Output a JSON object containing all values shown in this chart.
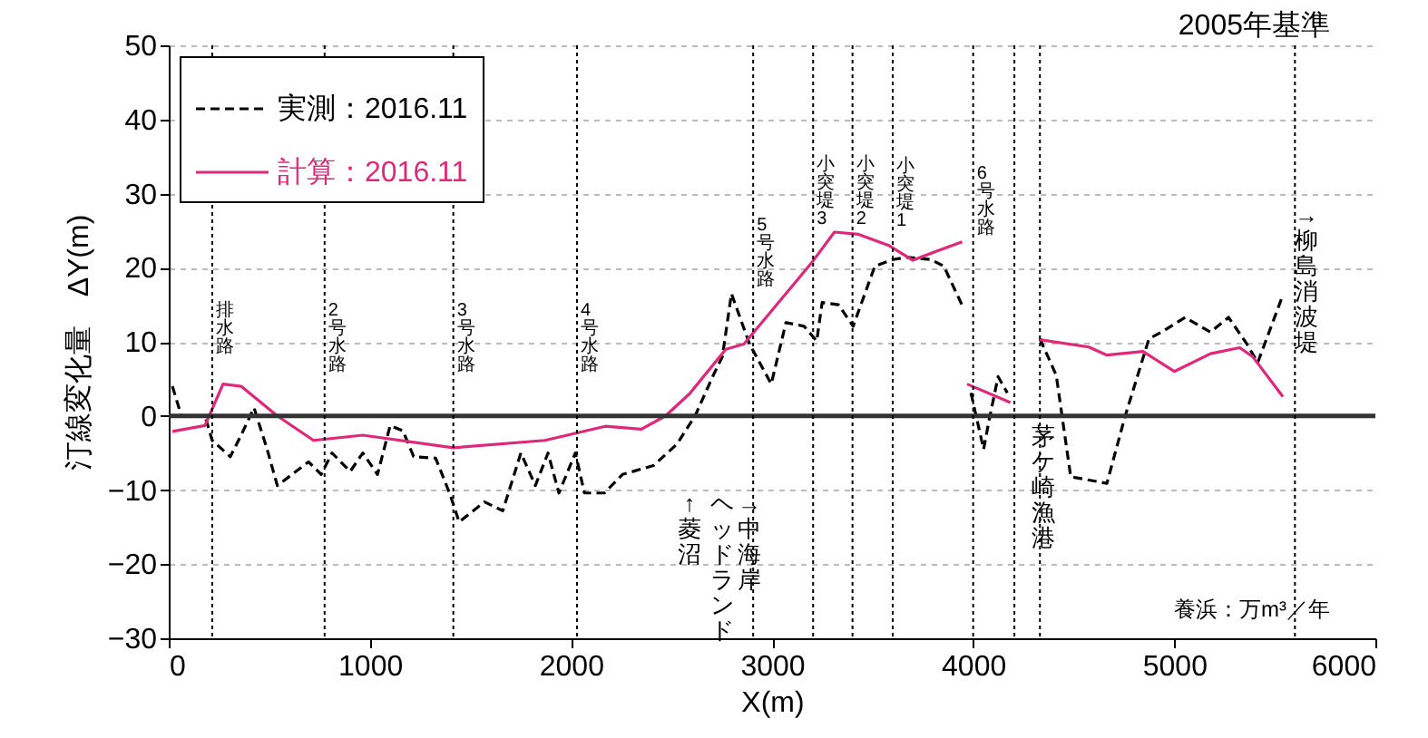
{
  "chart_data": {
    "type": "line",
    "xlabel": "X(m)",
    "ylabel": "汀線変化量　ΔY(m)",
    "xlim": [
      0,
      6000
    ],
    "xticks": [
      0,
      1000,
      2000,
      3000,
      4000,
      5000,
      6000
    ],
    "ylim": [
      -30,
      50
    ],
    "yticks": [
      -30,
      -20,
      -10,
      0,
      10,
      20,
      30,
      40,
      50
    ],
    "grid": "y",
    "legend": "top left",
    "series": [
      {
        "name": "実測：2016.11",
        "color": "#000000",
        "line_style": "dashed",
        "x": [
          18,
          63,
          180,
          216,
          306,
          360,
          424,
          487,
          540,
          632,
          695,
          758,
          812,
          902,
          965,
          1038,
          1101,
          1164,
          1218,
          1327,
          1399,
          1444,
          1570,
          1661,
          1751,
          1823,
          1886,
          1940,
          2022,
          2067,
          2166,
          2256,
          2410,
          2527,
          2617,
          2708,
          2753,
          2798,
          2888,
          2996,
          3069,
          3159,
          3222,
          3249,
          3330,
          3403,
          3511,
          3601,
          3673,
          3790,
          3854,
          3944,
          3960,
          3989,
          4052,
          4079,
          4124,
          4170,
          4250,
          4332,
          4413,
          4485,
          4665,
          4756,
          4874,
          4936,
          5054,
          5180,
          5270,
          5361,
          5415,
          5540
        ],
        "values": [
          4,
          0,
          0,
          -3.3,
          -5.5,
          -2.6,
          1.1,
          -4.3,
          -9.4,
          -7.5,
          -6.2,
          -7.9,
          -5,
          -7.5,
          -5,
          -7.9,
          -1.3,
          -2,
          -5.5,
          -5.7,
          -10.6,
          -14.3,
          -11.6,
          -12.8,
          -5,
          -9.4,
          -5,
          -10.4,
          -5,
          -10.4,
          -10.4,
          -7.9,
          -6.7,
          -3.8,
          0,
          5.5,
          8,
          16.5,
          9.7,
          4.3,
          12.6,
          12.1,
          10.1,
          15.3,
          15,
          12.1,
          20.2,
          21.1,
          21.4,
          21.1,
          20.2,
          15,
          null,
          3.1,
          -4.5,
          -0.6,
          5.3,
          3.1,
          null,
          10.4,
          5.5,
          -8.2,
          -9.1,
          0,
          10.4,
          11.3,
          13.3,
          11.3,
          13.3,
          9.7,
          7.2,
          16.3
        ]
      },
      {
        "name": "計算：2016.11",
        "color": "#e0287a",
        "line_style": "solid",
        "x": [
          18,
          180,
          270,
          360,
          540,
          720,
          965,
          1415,
          1870,
          2170,
          2350,
          2470,
          2590,
          2770,
          2860,
          3195,
          3310,
          3430,
          3580,
          3700,
          3825,
          3945,
          3960,
          3970,
          4185,
          4250,
          4330,
          4575,
          4665,
          4845,
          5000,
          5180,
          5325,
          5390,
          5540
        ],
        "values": [
          -2.1,
          -1.3,
          4.3,
          4,
          0,
          -3.3,
          -2.6,
          -4.3,
          -3.3,
          -1.4,
          -1.8,
          0,
          3,
          9,
          9.7,
          20.6,
          24.8,
          24.5,
          23,
          21,
          22.3,
          23.5,
          null,
          4.3,
          1.8,
          null,
          10.3,
          9.3,
          8.2,
          8.7,
          6,
          8.4,
          9.2,
          8,
          2.6
        ]
      }
    ],
    "ref_lines": [
      {
        "axis": "y",
        "value": 0,
        "line_style": "solid",
        "color": "#333333"
      },
      {
        "axis": "x",
        "value": 216,
        "label": "排水路",
        "line_style": "dotted",
        "color": "#000000"
      },
      {
        "axis": "x",
        "value": 775,
        "label": "2号水路",
        "line_style": "dotted",
        "color": "#000000"
      },
      {
        "axis": "x",
        "value": 1415,
        "label": "3号水路",
        "line_style": "dotted",
        "color": "#000000"
      },
      {
        "axis": "x",
        "value": 2030,
        "label": "4号水路",
        "line_style": "dotted",
        "color": "#000000"
      },
      {
        "axis": "x",
        "value": 2906,
        "label": "5号水路",
        "line_style": "dotted",
        "color": "#000000"
      },
      {
        "axis": "x",
        "value": 3204,
        "label": "小突堤3",
        "line_style": "dotted",
        "color": "#000000"
      },
      {
        "axis": "x",
        "value": 3400,
        "label": "小突堤2",
        "line_style": "dotted",
        "color": "#000000"
      },
      {
        "axis": "x",
        "value": 3600,
        "label": "小突堤1",
        "line_style": "dotted",
        "color": "#000000"
      },
      {
        "axis": "x",
        "value": 4000,
        "label": "6号水路",
        "line_style": "dotted",
        "color": "#000000"
      },
      {
        "axis": "x",
        "value": 4205,
        "line_style": "dotted",
        "color": "#000000"
      },
      {
        "axis": "x",
        "value": 4332,
        "line_style": "dotted",
        "color": "#000000"
      },
      {
        "axis": "x",
        "value": 5600,
        "line_style": "dotted",
        "color": "#000000"
      }
    ],
    "annotations": [
      "2005年基準",
      "養浜：万m³／年",
      "↑菱沼",
      "ヘッドランド",
      "→中海岸",
      "茅ケ崎漁港",
      "→柳島消波堤"
    ]
  }
}
